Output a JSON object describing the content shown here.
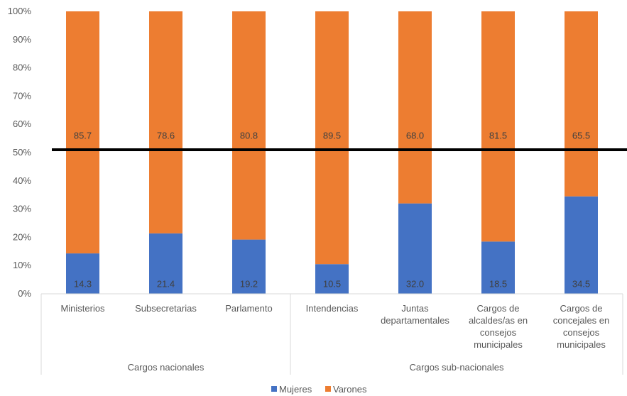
{
  "chart_data": {
    "type": "bar",
    "stacked": true,
    "percent_axis": true,
    "categories": [
      "Ministerios",
      "Subsecretarias",
      "Parlamento",
      "Intendencias",
      "Juntas departamentales",
      "Cargos de alcaldes/as en consejos municipales",
      "Cargos de concejales en consejos municipales"
    ],
    "category_lines": [
      [
        "Ministerios"
      ],
      [
        "Subsecretarias"
      ],
      [
        "Parlamento"
      ],
      [
        "Intendencias"
      ],
      [
        "Juntas",
        "departamentales"
      ],
      [
        "Cargos de",
        "alcaldes/as en",
        "consejos",
        "municipales"
      ],
      [
        "Cargos de",
        "concejales en",
        "consejos",
        "municipales"
      ]
    ],
    "groups": [
      {
        "label": "Cargos nacionales",
        "members": [
          0,
          1,
          2
        ]
      },
      {
        "label": "Cargos sub-nacionales",
        "members": [
          3,
          4,
          5,
          6
        ]
      }
    ],
    "series": [
      {
        "name": "Mujeres",
        "color": "#4472C4",
        "values": [
          14.3,
          21.4,
          19.2,
          10.5,
          32.0,
          18.5,
          34.5
        ],
        "labels": [
          "14.3",
          "21.4",
          "19.2",
          "10.5",
          "32.0",
          "18.5",
          "34.5"
        ]
      },
      {
        "name": "Varones",
        "color": "#ED7D31",
        "values": [
          85.7,
          78.6,
          80.8,
          89.5,
          68.0,
          81.5,
          65.5
        ],
        "labels": [
          "85.7",
          "78.6",
          "80.8",
          "89.5",
          "68.0",
          "81.5",
          "65.5"
        ]
      }
    ],
    "y_ticks": [
      "0%",
      "10%",
      "20%",
      "30%",
      "40%",
      "50%",
      "60%",
      "70%",
      "80%",
      "90%",
      "100%"
    ],
    "ylim": [
      0,
      100
    ],
    "reference_line": {
      "value": 51,
      "color": "#000000"
    },
    "legend_position": "bottom",
    "grid": false
  }
}
